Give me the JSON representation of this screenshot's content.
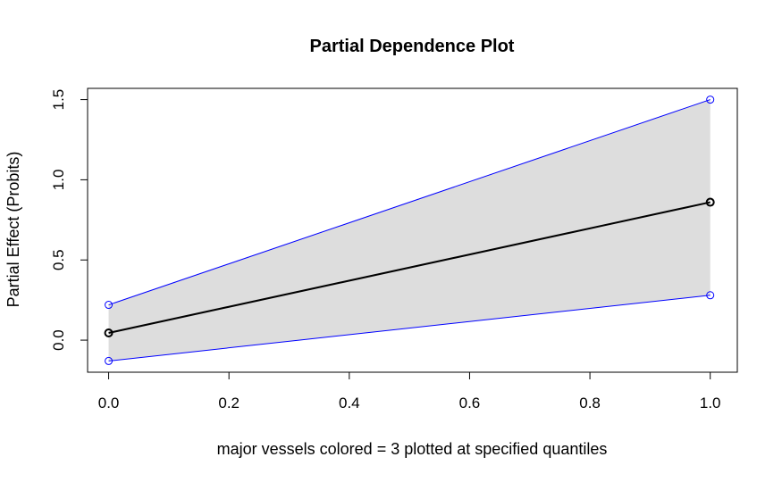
{
  "chart_data": {
    "type": "line",
    "title": "Partial Dependence Plot",
    "xlabel": "major vessels colored = 3 plotted at specified quantiles",
    "ylabel": "Partial Effect (Probits)",
    "xlim": [
      -0.035,
      1.045
    ],
    "ylim": [
      -0.2,
      1.57
    ],
    "x_ticks": [
      0.0,
      0.2,
      0.4,
      0.6,
      0.8,
      1.0
    ],
    "x_tick_labels": [
      "0.0",
      "0.2",
      "0.4",
      "0.6",
      "0.8",
      "1.0"
    ],
    "y_ticks": [
      0.0,
      0.5,
      1.0,
      1.5
    ],
    "y_tick_labels": [
      "0.0",
      "0.5",
      "1.0",
      "1.5"
    ],
    "grid": false,
    "x": [
      0,
      1
    ],
    "series": [
      {
        "role": "estimate",
        "values": [
          0.045,
          0.86
        ],
        "color": "#000000"
      },
      {
        "role": "upper",
        "values": [
          0.22,
          1.5
        ],
        "color": "#0000ff"
      },
      {
        "role": "lower",
        "values": [
          -0.13,
          0.28
        ],
        "color": "#0000ff"
      }
    ],
    "band_color": "#dddddd"
  }
}
